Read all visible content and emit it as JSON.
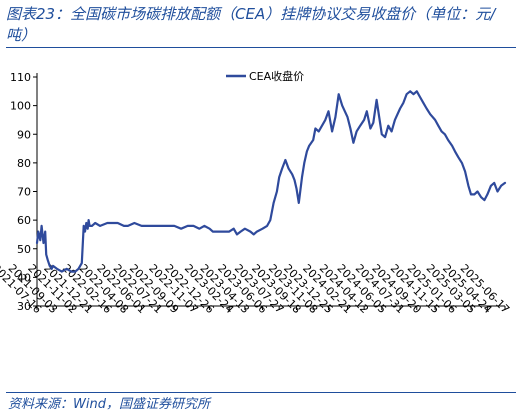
{
  "title": "图表23：全国碳市场碳排放配额（CEA）挂牌协议交易收盘价（单位：元/吨）",
  "source": "资料来源：Wind，国盛证券研究所",
  "colors": {
    "series": "#2f4a9c",
    "rule": "#1f4e9c",
    "text": "#1f4e9c"
  },
  "chart_data": {
    "type": "line",
    "title": "图表23：全国碳市场碳排放配额（CEA）挂牌协议交易收盘价（单位：元/吨）",
    "xlabel": "",
    "ylabel": "",
    "ylim": [
      30,
      110
    ],
    "yticks": [
      30,
      40,
      50,
      60,
      70,
      80,
      90,
      100,
      110
    ],
    "x_tick_labels": [
      "2021-07-16",
      "2021-09-03",
      "2021-11-02",
      "2021-12-21",
      "2022-02-16",
      "2022-04-08",
      "2022-06-01",
      "2022-07-21",
      "2022-09-09",
      "2022-11-07",
      "2022-12-26",
      "2023-02-24",
      "2023-04-13",
      "2023-06-06",
      "2023-07-27",
      "2023-09-18",
      "2023-11-08",
      "2023-12-25",
      "2024-02-21",
      "2024-04-12",
      "2024-06-05",
      "2024-07-31",
      "2024-09-20",
      "2024-11-15",
      "2025-01-06",
      "2025-03-05",
      "2025-04-24",
      "2025-06-17"
    ],
    "grid": false,
    "legend": {
      "position": "top-center"
    },
    "series": [
      {
        "name": "CEA收盘价",
        "x": [
          "2021-07-16",
          "2021-07-20",
          "2021-07-26",
          "2021-07-30",
          "2021-08-05",
          "2021-08-10",
          "2021-08-13",
          "2021-08-18",
          "2021-08-24",
          "2021-08-30",
          "2021-09-03",
          "2021-09-15",
          "2021-09-30",
          "2021-10-15",
          "2021-10-29",
          "2021-11-10",
          "2021-11-20",
          "2021-11-30",
          "2021-12-06",
          "2021-12-10",
          "2021-12-14",
          "2021-12-18",
          "2021-12-21",
          "2021-12-24",
          "2021-12-31",
          "2022-01-10",
          "2022-01-25",
          "2022-02-16",
          "2022-03-01",
          "2022-03-20",
          "2022-04-08",
          "2022-04-20",
          "2022-05-10",
          "2022-06-01",
          "2022-06-20",
          "2022-07-21",
          "2022-08-10",
          "2022-08-31",
          "2022-09-09",
          "2022-09-30",
          "2022-10-20",
          "2022-11-07",
          "2022-11-25",
          "2022-12-10",
          "2022-12-26",
          "2023-01-05",
          "2023-01-20",
          "2023-02-05",
          "2023-02-24",
          "2023-03-10",
          "2023-03-20",
          "2023-03-31",
          "2023-04-13",
          "2023-04-30",
          "2023-05-10",
          "2023-05-20",
          "2023-06-06",
          "2023-06-20",
          "2023-06-30",
          "2023-07-10",
          "2023-07-20",
          "2023-07-27",
          "2023-08-05",
          "2023-08-15",
          "2023-08-25",
          "2023-09-05",
          "2023-09-12",
          "2023-09-18",
          "2023-09-25",
          "2023-10-05",
          "2023-10-12",
          "2023-10-20",
          "2023-10-27",
          "2023-11-08",
          "2023-11-15",
          "2023-11-25",
          "2023-12-05",
          "2023-12-15",
          "2023-12-25",
          "2024-01-05",
          "2024-01-15",
          "2024-01-25",
          "2024-02-05",
          "2024-02-21",
          "2024-03-01",
          "2024-03-10",
          "2024-03-20",
          "2024-03-31",
          "2024-04-12",
          "2024-04-20",
          "2024-05-01",
          "2024-05-10",
          "2024-05-20",
          "2024-05-28",
          "2024-06-05",
          "2024-06-15",
          "2024-06-25",
          "2024-07-05",
          "2024-07-15",
          "2024-07-31",
          "2024-08-10",
          "2024-08-20",
          "2024-08-31",
          "2024-09-10",
          "2024-09-20",
          "2024-09-30",
          "2024-10-10",
          "2024-10-20",
          "2024-10-31",
          "2024-11-15",
          "2024-11-25",
          "2024-12-05",
          "2024-12-15",
          "2024-12-25",
          "2025-01-06",
          "2025-01-15",
          "2025-01-25",
          "2025-02-05",
          "2025-02-15",
          "2025-02-25",
          "2025-03-05",
          "2025-03-15",
          "2025-03-25",
          "2025-04-05",
          "2025-04-15",
          "2025-04-24",
          "2025-05-05",
          "2025-05-15",
          "2025-05-25",
          "2025-06-05",
          "2025-06-17"
        ],
        "values": [
          52,
          56,
          53,
          58,
          52,
          56,
          48,
          46,
          44,
          43,
          44,
          43,
          42,
          43,
          42,
          42,
          43,
          45,
          58,
          56,
          59,
          57,
          60,
          58,
          58,
          59,
          58,
          59,
          59,
          59,
          58,
          58,
          59,
          58,
          58,
          58,
          58,
          58,
          58,
          57,
          58,
          58,
          57,
          58,
          57,
          56,
          56,
          56,
          56,
          57,
          55,
          56,
          57,
          56,
          55,
          56,
          57,
          58,
          60,
          66,
          70,
          75,
          78,
          81,
          78,
          76,
          74,
          71,
          66,
          75,
          80,
          84,
          86,
          88,
          92,
          91,
          93,
          95,
          98,
          91,
          96,
          104,
          100,
          96,
          92,
          87,
          91,
          93,
          95,
          98,
          92,
          94,
          102,
          96,
          90,
          89,
          93,
          91,
          95,
          99,
          101,
          104,
          105,
          104,
          105,
          103,
          101,
          99,
          97,
          95,
          93,
          91,
          90,
          88,
          86,
          84,
          82,
          80,
          77,
          72,
          69,
          69,
          70,
          68,
          67,
          69,
          72,
          73,
          70,
          72,
          73
        ]
      }
    ]
  }
}
